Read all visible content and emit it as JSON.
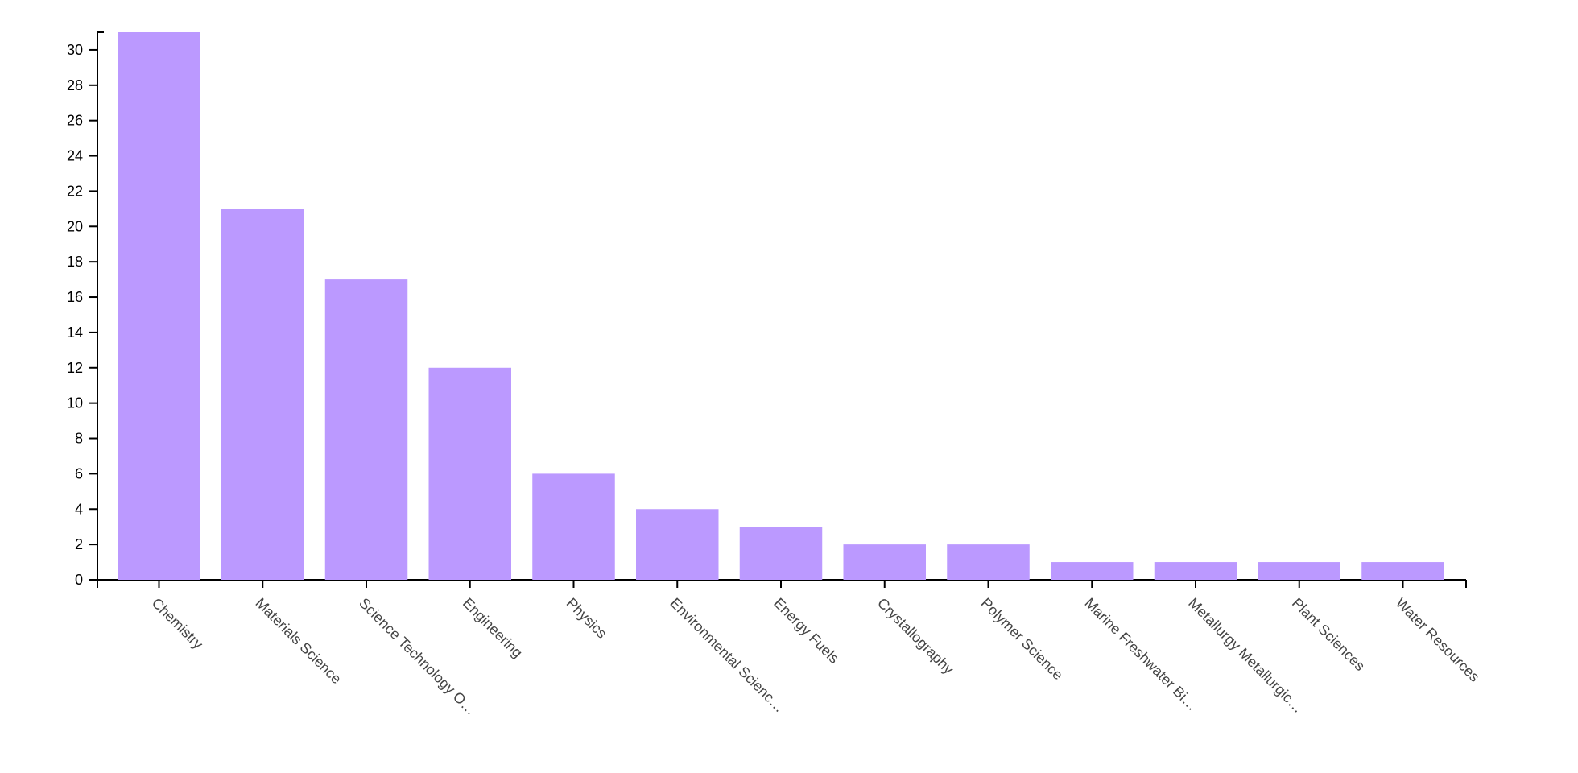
{
  "chart_data": {
    "type": "bar",
    "categories": [
      "Chemistry",
      "Materials Science",
      "Science Technology O…",
      "Engineering",
      "Physics",
      "Environmental Scienc…",
      "Energy Fuels",
      "Crystallography",
      "Polymer Science",
      "Marine Freshwater Bi…",
      "Metallurgy Metallurgic…",
      "Plant Sciences",
      "Water Resources"
    ],
    "values": [
      31,
      21,
      17,
      12,
      6,
      4,
      3,
      2,
      2,
      1,
      1,
      1,
      1
    ],
    "color": "#bb99ff",
    "ylim": [
      0,
      31
    ],
    "yticks": [
      0,
      2,
      4,
      6,
      8,
      10,
      12,
      14,
      16,
      18,
      20,
      22,
      24,
      26,
      28,
      30
    ]
  }
}
